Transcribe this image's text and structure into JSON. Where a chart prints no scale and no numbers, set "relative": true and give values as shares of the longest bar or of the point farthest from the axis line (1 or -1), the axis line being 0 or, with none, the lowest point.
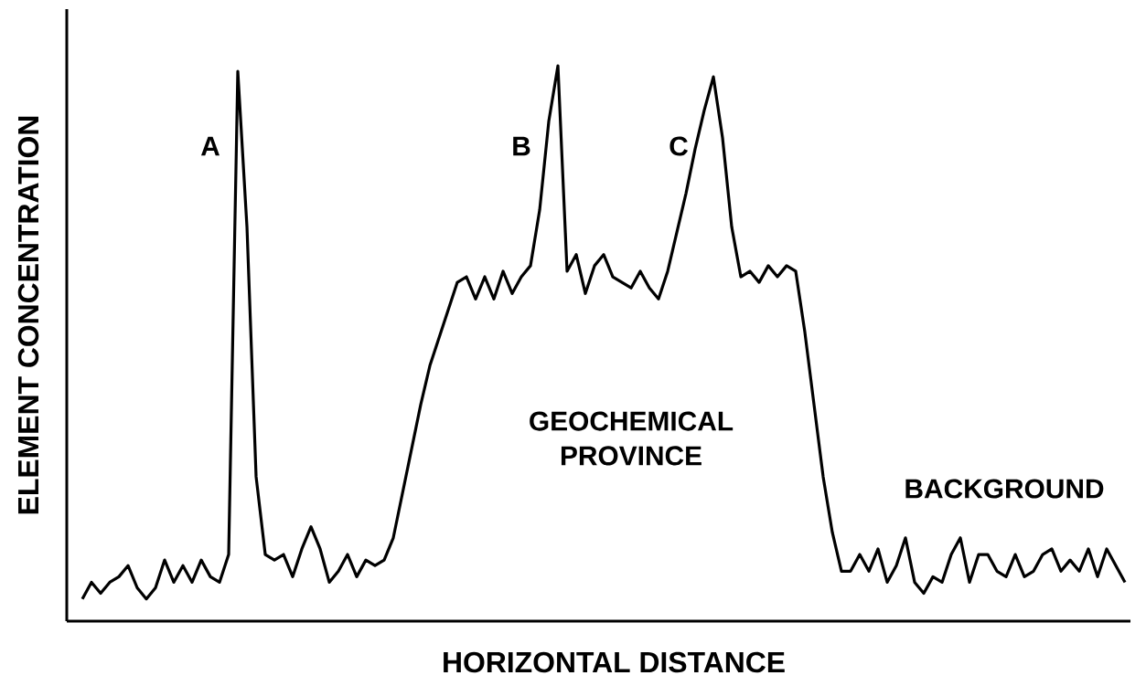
{
  "chart_data": {
    "type": "line",
    "relative": true,
    "xlabel": "HORIZONTAL DISTANCE",
    "ylabel": "ELEMENT CONCENTRATION",
    "annotations": [
      "A",
      "B",
      "C",
      "GEOCHEMICAL PROVINCE",
      "BACKGROUND"
    ],
    "categories": [
      null,
      null,
      null,
      null,
      null,
      null,
      null,
      null,
      null,
      null,
      null,
      null,
      null,
      null,
      null,
      null,
      null,
      null,
      null,
      null,
      null,
      null,
      null,
      null,
      null,
      null,
      null,
      null,
      null,
      null,
      null,
      null,
      null,
      null,
      null,
      null,
      null,
      null,
      null,
      null,
      null,
      null,
      null,
      null,
      null,
      null,
      null,
      null,
      null,
      null,
      null,
      null,
      null,
      null,
      null,
      null,
      null,
      null,
      null,
      null,
      null,
      null,
      null,
      null,
      null,
      null,
      null,
      null,
      null,
      null,
      null,
      null,
      null,
      null,
      null,
      null,
      null,
      null,
      null,
      null,
      null,
      null,
      null,
      null,
      null,
      null,
      null,
      null,
      null,
      null,
      null,
      null,
      null,
      null,
      null,
      null,
      null,
      null,
      null,
      null,
      null,
      null,
      null,
      null,
      null,
      null,
      null,
      null,
      null,
      null,
      null,
      null,
      null,
      null,
      null
    ],
    "color": "#000000",
    "line_style": "solid",
    "values": [
      0.04,
      0.07,
      0.05,
      0.07,
      0.08,
      0.1,
      0.06,
      0.04,
      0.06,
      0.11,
      0.07,
      0.1,
      0.07,
      0.11,
      0.08,
      0.07,
      0.12,
      0.99,
      0.71,
      0.26,
      0.12,
      0.11,
      0.12,
      0.08,
      0.13,
      0.17,
      0.13,
      0.07,
      0.09,
      0.12,
      0.08,
      0.11,
      0.1,
      0.11,
      0.15,
      0.23,
      0.31,
      0.39,
      0.46,
      0.51,
      0.56,
      0.61,
      0.62,
      0.58,
      0.62,
      0.58,
      0.63,
      0.59,
      0.62,
      0.64,
      0.74,
      0.9,
      1,
      0.63,
      0.66,
      0.59,
      0.64,
      0.66,
      0.62,
      0.61,
      0.6,
      0.63,
      0.6,
      0.58,
      0.63,
      0.7,
      0.77,
      0.85,
      0.92,
      0.98,
      0.87,
      0.71,
      0.62,
      0.63,
      0.61,
      0.64,
      0.62,
      0.64,
      0.63,
      0.52,
      0.39,
      0.26,
      0.16,
      0.09,
      0.09,
      0.12,
      0.09,
      0.13,
      0.07,
      0.1,
      0.15,
      0.07,
      0.05,
      0.08,
      0.07,
      0.12,
      0.15,
      0.07,
      0.12,
      0.12,
      0.09,
      0.08,
      0.12,
      0.08,
      0.09,
      0.12,
      0.13,
      0.09,
      0.11,
      0.09,
      0.13,
      0.08,
      0.13,
      0.1,
      0.07
    ]
  }
}
